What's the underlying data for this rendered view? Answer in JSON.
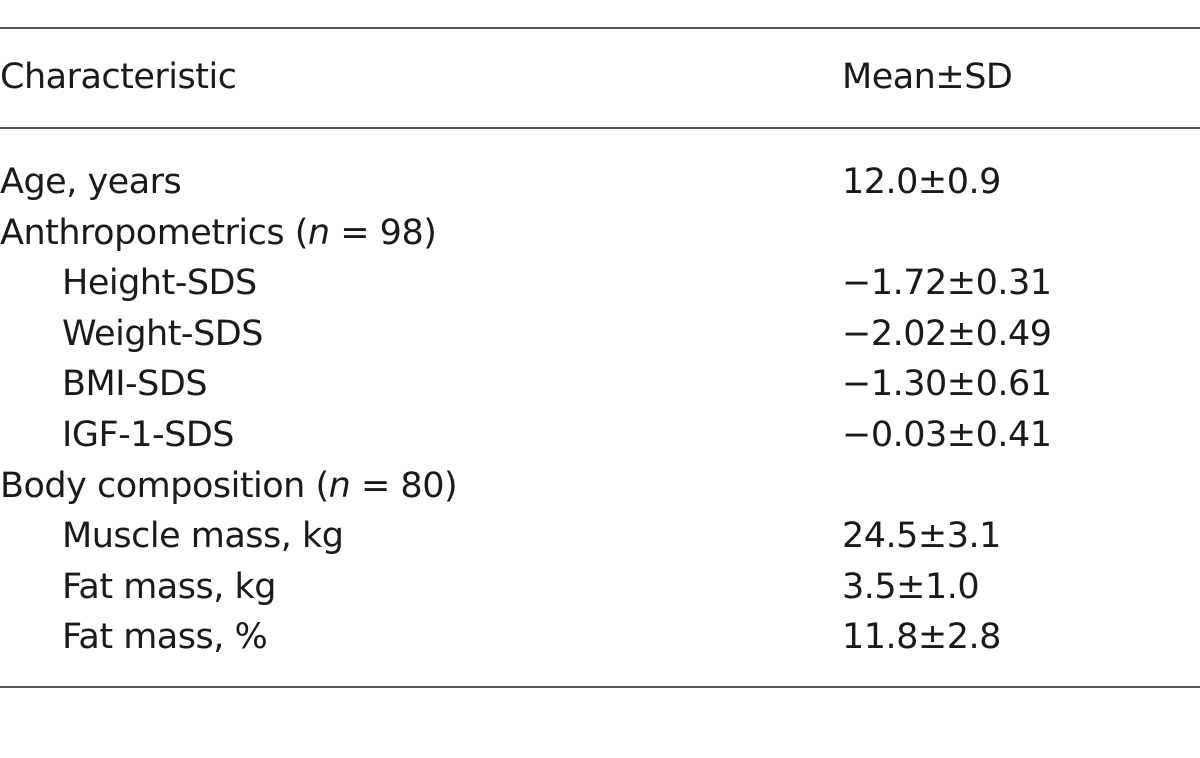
{
  "table": {
    "headers": {
      "characteristic": "Characteristic",
      "value": "Mean±SD"
    },
    "rows": [
      {
        "label": "Age, years",
        "label_pre": "",
        "n_var": "",
        "label_post": "",
        "value": "12.0±0.9",
        "indent": false
      },
      {
        "label": "",
        "label_pre": "Anthropometrics (",
        "n_var": "n",
        "label_post": " = 98)",
        "value": "",
        "indent": false
      },
      {
        "label": "Height-SDS",
        "label_pre": "",
        "n_var": "",
        "label_post": "",
        "value": "−1.72±0.31",
        "indent": true
      },
      {
        "label": "Weight-SDS",
        "label_pre": "",
        "n_var": "",
        "label_post": "",
        "value": "−2.02±0.49",
        "indent": true
      },
      {
        "label": "BMI-SDS",
        "label_pre": "",
        "n_var": "",
        "label_post": "",
        "value": "−1.30±0.61",
        "indent": true
      },
      {
        "label": "IGF-1-SDS",
        "label_pre": "",
        "n_var": "",
        "label_post": "",
        "value": "−0.03±0.41",
        "indent": true
      },
      {
        "label": "",
        "label_pre": "Body composition (",
        "n_var": "n",
        "label_post": " = 80)",
        "value": "",
        "indent": false
      },
      {
        "label": "Muscle mass, kg",
        "label_pre": "",
        "n_var": "",
        "label_post": "",
        "value": "24.5±3.1",
        "indent": true
      },
      {
        "label": "Fat mass, kg",
        "label_pre": "",
        "n_var": "",
        "label_post": "",
        "value": "3.5±1.0",
        "indent": true
      },
      {
        "label": "Fat mass, %",
        "label_pre": "",
        "n_var": "",
        "label_post": "",
        "value": "11.8±2.8",
        "indent": true
      }
    ]
  }
}
